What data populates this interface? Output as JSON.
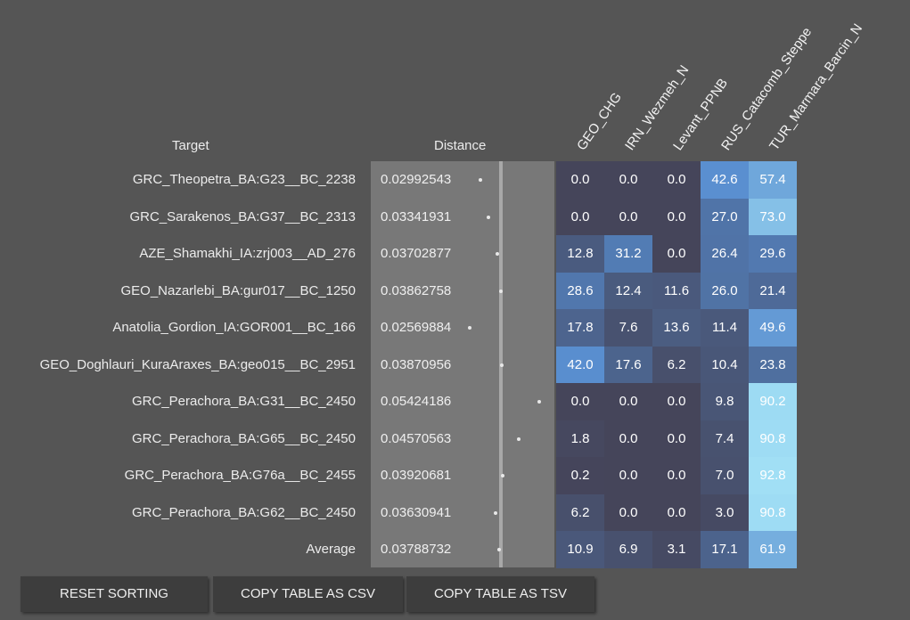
{
  "headers": {
    "target": "Target",
    "distance": "Distance",
    "columns": [
      "GEO_CHG",
      "IRN_Wezmeh_N",
      "Levant_PPNB",
      "RUS_Catacomb_Steppe",
      "TUR_Marmara_Barcin_N"
    ]
  },
  "rows": [
    {
      "target": "GRC_Theopetra_BA:G23__BC_2238",
      "distance": "0.02992543",
      "values": [
        "0.0",
        "0.0",
        "0.0",
        "42.6",
        "57.4"
      ]
    },
    {
      "target": "GRC_Sarakenos_BA:G37__BC_2313",
      "distance": "0.03341931",
      "values": [
        "0.0",
        "0.0",
        "0.0",
        "27.0",
        "73.0"
      ]
    },
    {
      "target": "AZE_Shamakhi_IA:zrj003__AD_276",
      "distance": "0.03702877",
      "values": [
        "12.8",
        "31.2",
        "0.0",
        "26.4",
        "29.6"
      ]
    },
    {
      "target": "GEO_Nazarlebi_BA:gur017__BC_1250",
      "distance": "0.03862758",
      "values": [
        "28.6",
        "12.4",
        "11.6",
        "26.0",
        "21.4"
      ]
    },
    {
      "target": "Anatolia_Gordion_IA:GOR001__BC_166",
      "distance": "0.02569884",
      "values": [
        "17.8",
        "7.6",
        "13.6",
        "11.4",
        "49.6"
      ]
    },
    {
      "target": "GEO_Doghlauri_KuraAraxes_BA:geo015__BC_2951",
      "distance": "0.03870956",
      "values": [
        "42.0",
        "17.6",
        "6.2",
        "10.4",
        "23.8"
      ]
    },
    {
      "target": "GRC_Perachora_BA:G31__BC_2450",
      "distance": "0.05424186",
      "values": [
        "0.0",
        "0.0",
        "0.0",
        "9.8",
        "90.2"
      ]
    },
    {
      "target": "GRC_Perachora_BA:G65__BC_2450",
      "distance": "0.04570563",
      "values": [
        "1.8",
        "0.0",
        "0.0",
        "7.4",
        "90.8"
      ]
    },
    {
      "target": "GRC_Perachora_BA:G76a__BC_2455",
      "distance": "0.03920681",
      "values": [
        "0.2",
        "0.0",
        "0.0",
        "7.0",
        "92.8"
      ]
    },
    {
      "target": "GRC_Perachora_BA:G62__BC_2450",
      "distance": "0.03630941",
      "values": [
        "6.2",
        "0.0",
        "0.0",
        "3.0",
        "90.8"
      ]
    },
    {
      "target": "Average",
      "distance": "0.03788732",
      "values": [
        "10.9",
        "6.9",
        "3.1",
        "17.1",
        "61.9"
      ]
    }
  ],
  "buttons": {
    "reset": "RESET SORTING",
    "csv": "COPY TABLE AS CSV",
    "tsv": "COPY TABLE AS TSV"
  },
  "colors": {
    "background": "#555555",
    "button": "#3d3d3d",
    "cell_zero": "#45455a",
    "cell_full": "#a4e3f7"
  }
}
